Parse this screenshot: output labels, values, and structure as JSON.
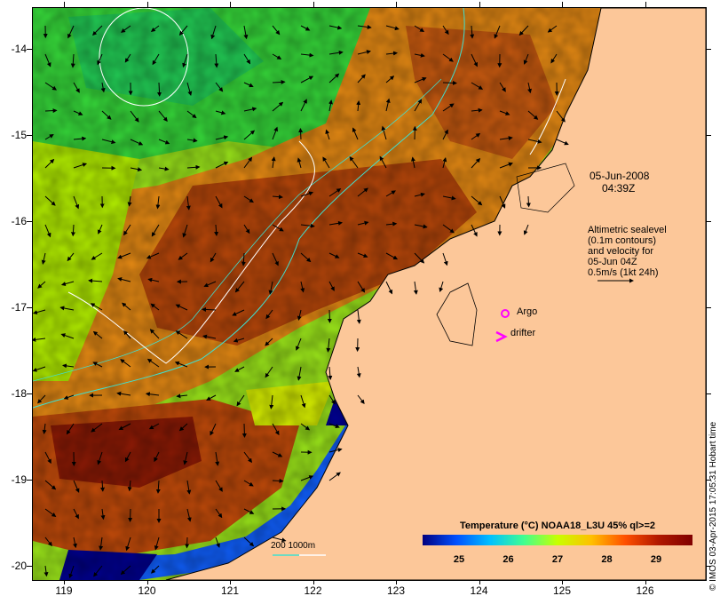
{
  "map": {
    "lat_ticks": [
      "-14",
      "-15",
      "-16",
      "-17",
      "-18",
      "-19",
      "-20"
    ],
    "lon_ticks": [
      "119",
      "120",
      "121",
      "122",
      "123",
      "124",
      "125",
      "126"
    ],
    "date": "05-Jun-2008",
    "time": "04:39Z",
    "altimetry_label": [
      "Altimetric sealevel",
      "(0.1m contours)",
      "and velocity for",
      "05-Jun 04Z",
      "0.5m/s (1kt 24h)"
    ],
    "argo_label": "Argo",
    "drifter_label": "drifter",
    "depth_label": "200  1000m",
    "colorbar_title": "Temperature (°C) NOAA18_L3U 45% ql>=2",
    "colorbar_ticks": [
      "25",
      "26",
      "27",
      "28",
      "29"
    ],
    "side_credit": "© IMOS 03-Apr-2015 17:05:31 Hobart time",
    "colors": {
      "land": "#fcc799",
      "argo": "#ff00ff",
      "drifter": "#ff00ff",
      "contour_200": "#40e0d0",
      "contour_1000": "#ffffff",
      "colormap": [
        "#000080",
        "#0050ff",
        "#00c0ff",
        "#40ff90",
        "#c8ff00",
        "#ffc000",
        "#ff5000",
        "#b01800",
        "#800000"
      ]
    }
  }
}
